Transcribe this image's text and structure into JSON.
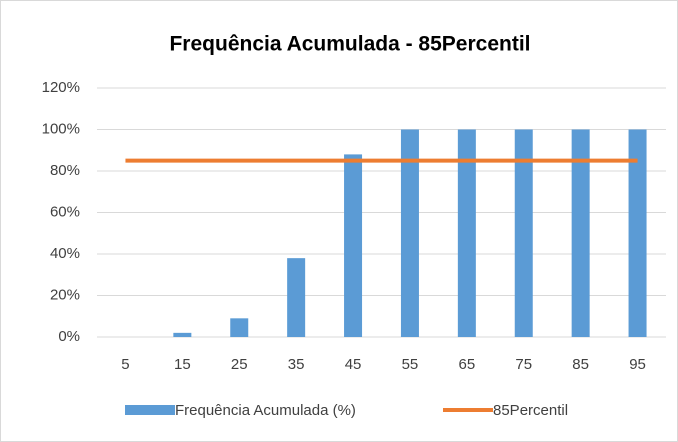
{
  "chart_data": {
    "type": "bar",
    "title": "Frequência Acumulada  - 85Percentil",
    "categories": [
      "5",
      "15",
      "25",
      "35",
      "45",
      "55",
      "65",
      "75",
      "85",
      "95"
    ],
    "series": [
      {
        "name": "Frequência Acumulada (%)",
        "type": "bar",
        "color": "#5b9bd5",
        "values": [
          0,
          2,
          9,
          38,
          88,
          100,
          100,
          100,
          100,
          100
        ]
      },
      {
        "name": "85Percentil",
        "type": "line",
        "color": "#ed7d31",
        "values": [
          85,
          85,
          85,
          85,
          85,
          85,
          85,
          85,
          85,
          85
        ]
      }
    ],
    "ylim": [
      0,
      120
    ],
    "yticks": [
      {
        "value": 0,
        "label": "0%"
      },
      {
        "value": 20,
        "label": "20%"
      },
      {
        "value": 40,
        "label": "40%"
      },
      {
        "value": 60,
        "label": "60%"
      },
      {
        "value": 80,
        "label": "80%"
      },
      {
        "value": 100,
        "label": "100%"
      },
      {
        "value": 120,
        "label": "120%"
      }
    ],
    "grid": true
  }
}
